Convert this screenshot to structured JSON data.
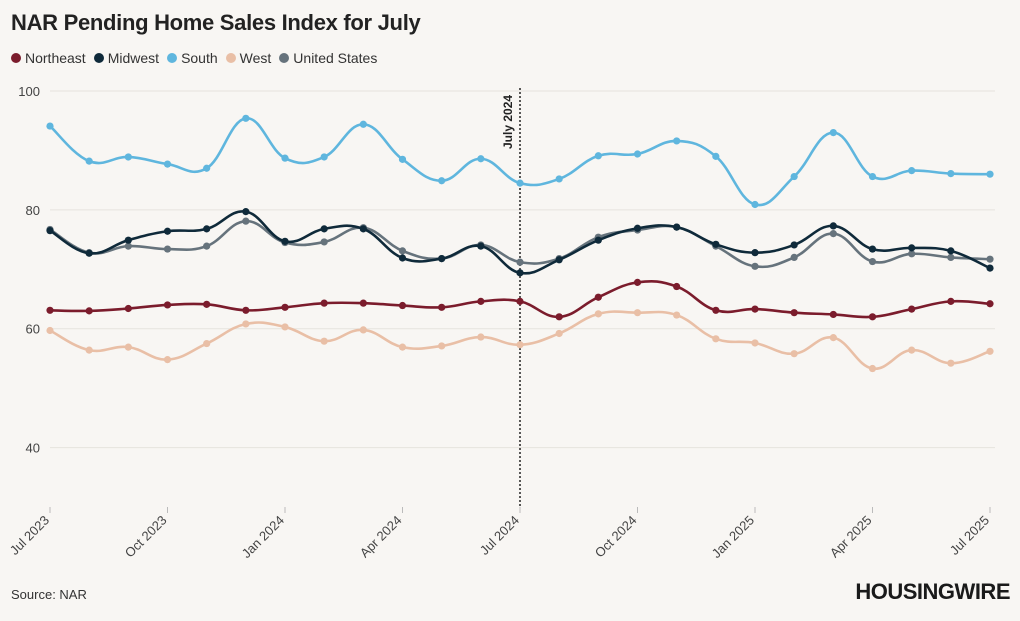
{
  "title": "NAR Pending Home Sales Index for July",
  "source": "Source: NAR",
  "logo": "HOUSINGWIRE",
  "legend": [
    {
      "name": "Northeast",
      "color": "#7b1c2c"
    },
    {
      "name": "Midwest",
      "color": "#0f2a3a"
    },
    {
      "name": "South",
      "color": "#5fb6de"
    },
    {
      "name": "West",
      "color": "#e9bfa6"
    },
    {
      "name": "United States",
      "color": "#66737c"
    }
  ],
  "chart_data": {
    "type": "line",
    "title": "NAR Pending Home Sales Index for July",
    "x": [
      "Jul 2023",
      "Aug 2023",
      "Sep 2023",
      "Oct 2023",
      "Nov 2023",
      "Dec 2023",
      "Jan 2024",
      "Feb 2024",
      "Mar 2024",
      "Apr 2024",
      "May 2024",
      "Jun 2024",
      "Jul 2024",
      "Aug 2024",
      "Sep 2024",
      "Oct 2024",
      "Nov 2024",
      "Dec 2024",
      "Jan 2025",
      "Feb 2025",
      "Mar 2025",
      "Apr 2025",
      "May 2025",
      "Jun 2025",
      "Jul 2025"
    ],
    "xticks": [
      "Jul 2023",
      "Oct 2023",
      "Jan 2024",
      "Apr 2024",
      "Jul 2024",
      "Oct 2024",
      "Jan 2025",
      "Apr 2025",
      "Jul 2025"
    ],
    "yticks": [
      40,
      60,
      80,
      100
    ],
    "ylim": [
      30,
      100
    ],
    "grid": true,
    "annotation": {
      "x": "Jul 2024",
      "label": "July 2024"
    },
    "series": [
      {
        "name": "Northeast",
        "color": "#7b1c2c",
        "values": [
          63.1,
          63.0,
          63.4,
          64.0,
          64.1,
          63.1,
          63.6,
          64.3,
          64.3,
          63.9,
          63.6,
          64.6,
          64.6,
          62.0,
          65.3,
          67.8,
          67.1,
          63.1,
          63.3,
          62.7,
          62.4,
          62.0,
          63.3,
          64.6,
          64.2
        ]
      },
      {
        "name": "Midwest",
        "color": "#0f2a3a",
        "values": [
          76.5,
          72.7,
          74.9,
          76.4,
          76.8,
          79.7,
          74.7,
          76.8,
          76.8,
          71.9,
          71.8,
          73.9,
          69.4,
          71.6,
          74.9,
          76.9,
          77.1,
          74.2,
          72.8,
          74.1,
          77.3,
          73.4,
          73.6,
          73.1,
          70.2
        ]
      },
      {
        "name": "South",
        "color": "#5fb6de",
        "values": [
          94.1,
          88.2,
          88.9,
          87.7,
          87.0,
          95.4,
          88.7,
          88.9,
          94.4,
          88.5,
          84.9,
          88.6,
          84.5,
          85.2,
          89.1,
          89.4,
          91.6,
          89.0,
          80.9,
          85.6,
          93.0,
          85.6,
          86.6,
          86.1,
          86.0
        ]
      },
      {
        "name": "West",
        "color": "#e9bfa6",
        "values": [
          59.7,
          56.4,
          56.9,
          54.8,
          57.5,
          60.8,
          60.3,
          57.9,
          59.8,
          56.9,
          57.1,
          58.6,
          57.3,
          59.2,
          62.5,
          62.7,
          62.3,
          58.3,
          57.6,
          55.8,
          58.5,
          53.3,
          56.4,
          54.2,
          56.2
        ]
      },
      {
        "name": "United States",
        "color": "#66737c",
        "values": [
          76.7,
          72.8,
          73.9,
          73.4,
          73.9,
          78.1,
          74.5,
          74.6,
          77.0,
          73.1,
          71.8,
          74.1,
          71.2,
          71.8,
          75.4,
          76.6,
          77.1,
          73.9,
          70.5,
          72.0,
          76.0,
          71.3,
          72.6,
          72.0,
          71.7
        ]
      }
    ]
  }
}
